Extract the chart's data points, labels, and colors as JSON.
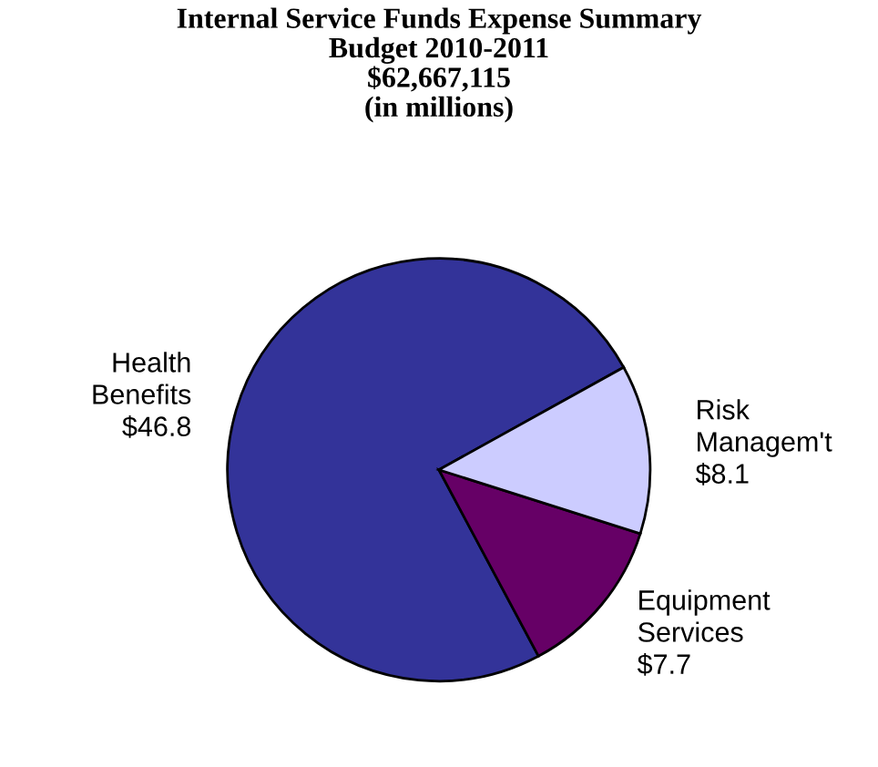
{
  "chart_data": {
    "type": "pie",
    "title": "Internal Service Funds Expense Summary\nBudget 2010-2011\n$62,667,115\n(in millions)",
    "categories": [
      "Health\nBenefits",
      "Equipment\nServices",
      "Risk\nManagem't"
    ],
    "values": [
      46.8,
      7.7,
      8.1
    ],
    "value_labels": [
      "$46.8",
      "$7.7",
      "$8.1"
    ],
    "colors": [
      "#333399",
      "#660066",
      "#ccccff"
    ],
    "legend": false
  }
}
